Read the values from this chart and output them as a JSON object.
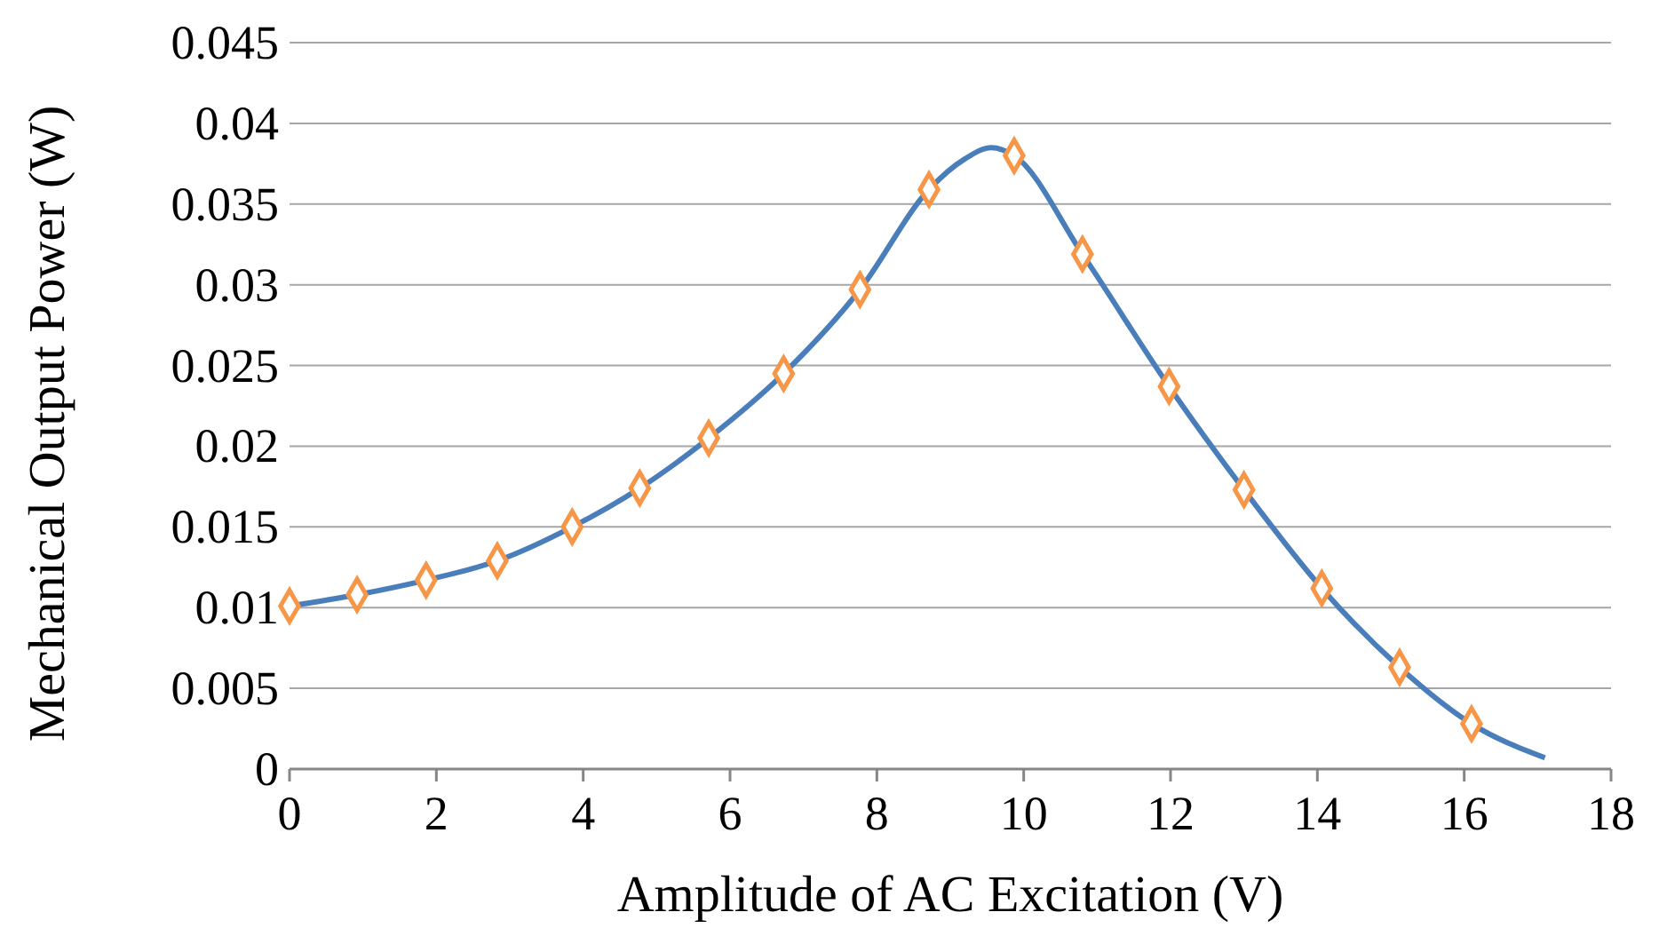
{
  "chart_data": {
    "type": "line",
    "xlabel": "Amplitude of AC Excitation (V)",
    "ylabel": "Mechanical Output Power (W)",
    "xlim": [
      0,
      18
    ],
    "xticks": [
      0,
      2,
      4,
      6,
      8,
      10,
      12,
      14,
      16,
      18
    ],
    "ylim": [
      0,
      0.045
    ],
    "yticks": [
      0,
      0.005,
      0.01,
      0.015,
      0.02,
      0.025,
      0.03,
      0.035,
      0.04,
      0.045
    ],
    "grid": "y",
    "series": [
      {
        "color": "#4a7ebb",
        "marker": "none",
        "line_style": "solid",
        "x": [
          0,
          0.92,
          1.86,
          2.83,
          3.85,
          4.77,
          5.71,
          6.73,
          7.77,
          8.71,
          9.2,
          9.56,
          9.87,
          10.8,
          11.98,
          13.0,
          14.06,
          15.12,
          16.1,
          17.1
        ],
        "values": [
          0.0101,
          0.0108,
          0.0117,
          0.0129,
          0.015,
          0.0174,
          0.0205,
          0.0245,
          0.0297,
          0.0359,
          0.0378,
          0.0385,
          0.038,
          0.0319,
          0.0237,
          0.0173,
          0.0112,
          0.0063,
          0.0028,
          0.0007
        ]
      },
      {
        "type": "scatter",
        "color": "#f79646",
        "marker": "diamond",
        "x": [
          0,
          0.92,
          1.86,
          2.83,
          3.85,
          4.77,
          5.71,
          6.73,
          7.77,
          8.71,
          9.87,
          10.8,
          11.98,
          13.0,
          14.06,
          15.12,
          16.1
        ],
        "values": [
          0.0101,
          0.0108,
          0.0117,
          0.0129,
          0.015,
          0.0174,
          0.0205,
          0.0245,
          0.0297,
          0.0359,
          0.038,
          0.0319,
          0.0237,
          0.0173,
          0.0112,
          0.0063,
          0.0028
        ]
      }
    ]
  }
}
